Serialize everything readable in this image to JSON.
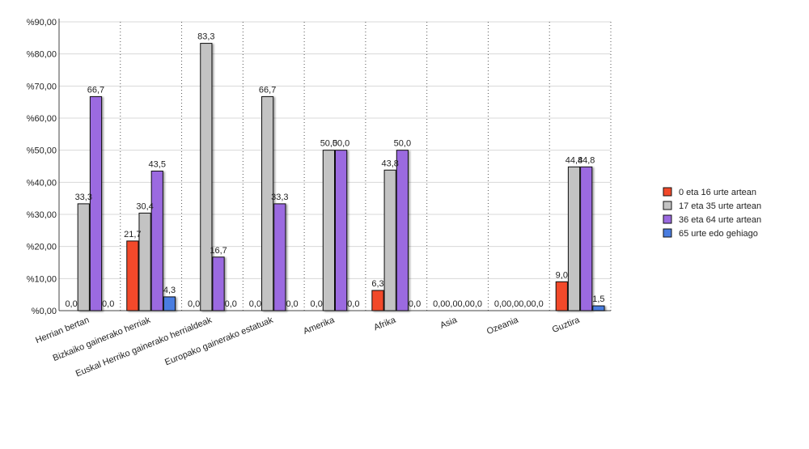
{
  "chart_data": {
    "type": "bar",
    "categories": [
      "Herrian bertan",
      "Bizkaiko gainerako herriak",
      "Euskal Herriko gainerako herrialdeak",
      "Europako gainerako estatuak",
      "Amerika",
      "Afrika",
      "Asia",
      "Ozeania",
      "Guztira"
    ],
    "series": [
      {
        "name": "0 eta 16 urte artean",
        "color": "#f2492a",
        "values": [
          0.0,
          21.7,
          0.0,
          0.0,
          0.0,
          6.3,
          0.0,
          0.0,
          9.0
        ],
        "value_labels": [
          "0,0",
          "21,7",
          "0,0",
          "0,0",
          "0,0",
          "6,3",
          "0,0",
          "0,0",
          "9,0"
        ]
      },
      {
        "name": "17 eta 35 urte artean",
        "color": "#c3c3c3",
        "values": [
          33.3,
          30.4,
          83.3,
          66.7,
          50.0,
          43.8,
          0.0,
          0.0,
          44.8
        ],
        "value_labels": [
          "33,3",
          "30,4",
          "83,3",
          "66,7",
          "50,0",
          "43,8",
          "0,0",
          "0,0",
          "44,8"
        ]
      },
      {
        "name": "36 eta 64 urte artean",
        "color": "#9b6ae0",
        "values": [
          66.7,
          43.5,
          16.7,
          33.3,
          50.0,
          50.0,
          0.0,
          0.0,
          44.8
        ],
        "value_labels": [
          "66,7",
          "43,5",
          "16,7",
          "33,3",
          "50,0",
          "50,0",
          "0,0",
          "0,0",
          "44,8"
        ]
      },
      {
        "name": "65 urte edo gehiago",
        "color": "#4a7de0",
        "values": [
          0.0,
          4.3,
          0.0,
          0.0,
          0.0,
          0.0,
          0.0,
          0.0,
          1.5
        ],
        "value_labels": [
          "0,0",
          "4,3",
          "0,0",
          "0,0",
          "0,0",
          "0,0",
          "0,0",
          "0,0",
          "1,5"
        ]
      }
    ],
    "ylim": [
      0,
      90
    ],
    "yticks": [
      {
        "value": 0,
        "label": "%0,00"
      },
      {
        "value": 10,
        "label": "%10,00"
      },
      {
        "value": 20,
        "label": "%20,00"
      },
      {
        "value": 30,
        "label": "%30,00"
      },
      {
        "value": 40,
        "label": "%40,00"
      },
      {
        "value": 50,
        "label": "%50,00"
      },
      {
        "value": 60,
        "label": "%60,00"
      },
      {
        "value": 70,
        "label": "%70,00"
      },
      {
        "value": 80,
        "label": "%80,00"
      },
      {
        "value": 90,
        "label": "%90,00"
      }
    ],
    "grid": true,
    "legend": "right"
  }
}
